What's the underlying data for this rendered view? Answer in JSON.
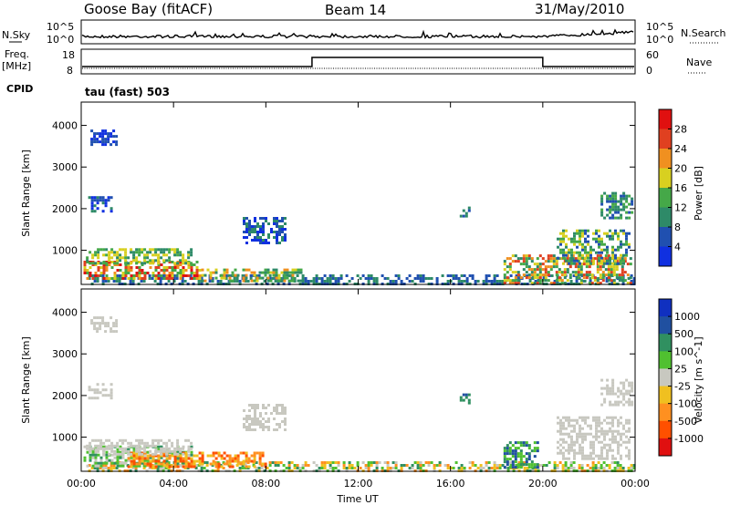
{
  "header": {
    "station": "Goose Bay (fitACF)",
    "beam": "Beam 14",
    "date": "31/May/2010"
  },
  "strips": {
    "nsky_label": "N.Sky",
    "nsky_ticks": [
      "10^5",
      "10^0"
    ],
    "nsearch_label": "N.Search",
    "nsearch_ticks": [
      "10^5",
      "10^0"
    ],
    "freq_label": "Freq.",
    "freq_unit": "[MHz]",
    "freq_ticks": [
      "18",
      "8"
    ],
    "nave_label": "Nave",
    "nave_ticks": [
      "60",
      "0"
    ],
    "cpid_label": "CPID",
    "cpid_value": "tau (fast) 503"
  },
  "chart_data": [
    {
      "type": "heatmap",
      "name": "power",
      "ylabel": "Slant Range [km]",
      "yticks": [
        "4000",
        "3000",
        "2000",
        "1000"
      ],
      "ylim": [
        180,
        4560
      ],
      "xlim_hours": [
        0,
        24
      ],
      "colorbar_label": "Power [dB]",
      "colorbar_ticks": [
        "28",
        "24",
        "20",
        "16",
        "12",
        "8",
        "4"
      ],
      "colors": [
        "#1030e0",
        "#2050b0",
        "#2e8a68",
        "#45a848",
        "#d8d020",
        "#f09020",
        "#e04020",
        "#e01010"
      ],
      "regions": [
        {
          "t0": 0.3,
          "t1": 24,
          "r0": 200,
          "r1": 420,
          "lvl": [
            1,
            2
          ]
        },
        {
          "t0": 0.1,
          "t1": 5.2,
          "r0": 300,
          "r1": 750,
          "lvl": [
            3,
            7
          ]
        },
        {
          "t0": 5.2,
          "t1": 9.5,
          "r0": 250,
          "r1": 560,
          "lvl": [
            2,
            5
          ]
        },
        {
          "t0": 0.2,
          "t1": 4.8,
          "r0": 700,
          "r1": 1050,
          "lvl": [
            2,
            4
          ]
        },
        {
          "t0": 0.3,
          "t1": 1.3,
          "r0": 1950,
          "r1": 2300,
          "lvl": [
            0,
            2
          ]
        },
        {
          "t0": 0.4,
          "t1": 1.5,
          "r0": 3550,
          "r1": 3900,
          "lvl": [
            0,
            1
          ]
        },
        {
          "t0": 7.0,
          "t1": 8.8,
          "r0": 1200,
          "r1": 1800,
          "lvl": [
            0,
            2
          ]
        },
        {
          "t0": 16.4,
          "t1": 16.8,
          "r0": 1800,
          "r1": 2050,
          "lvl": [
            1,
            2
          ]
        },
        {
          "t0": 18.3,
          "t1": 23.8,
          "r0": 200,
          "r1": 900,
          "lvl": [
            2,
            6
          ]
        },
        {
          "t0": 20.6,
          "t1": 23.8,
          "r0": 700,
          "r1": 1500,
          "lvl": [
            1,
            4
          ]
        },
        {
          "t0": 22.5,
          "t1": 23.9,
          "r0": 1800,
          "r1": 2400,
          "lvl": [
            1,
            3
          ]
        }
      ]
    },
    {
      "type": "heatmap",
      "name": "velocity",
      "ylabel": "Slant Range [km]",
      "yticks": [
        "4000",
        "3000",
        "2000",
        "1000"
      ],
      "ylim": [
        180,
        4560
      ],
      "xlim_hours": [
        0,
        24
      ],
      "xlabel": "Time UT",
      "xticks": [
        "00:00",
        "04:00",
        "08:00",
        "12:00",
        "16:00",
        "20:00",
        "00:00"
      ],
      "colorbar_label": "Velocity [m s^-1]",
      "colorbar_ticks": [
        "1000",
        "500",
        "100",
        "25",
        "-25",
        "-100",
        "-500",
        "-1000"
      ],
      "colors": [
        "#e01010",
        "#ff5000",
        "#ff9020",
        "#f0c020",
        "#c8c8c0",
        "#50c030",
        "#309060",
        "#2050a0",
        "#1030c0"
      ],
      "regions": [
        {
          "t0": 0.3,
          "t1": 24,
          "r0": 200,
          "r1": 420,
          "lvl": [
            2,
            6
          ]
        },
        {
          "t0": 0.1,
          "t1": 4.8,
          "r0": 300,
          "r1": 800,
          "lvl": [
            4,
            6
          ]
        },
        {
          "t0": 2.0,
          "t1": 8.0,
          "r0": 300,
          "r1": 650,
          "lvl": [
            1,
            3
          ]
        },
        {
          "t0": 0.2,
          "t1": 4.8,
          "r0": 600,
          "r1": 950,
          "lvl": [
            4,
            4
          ]
        },
        {
          "t0": 0.3,
          "t1": 1.3,
          "r0": 1950,
          "r1": 2300,
          "lvl": [
            4,
            4
          ]
        },
        {
          "t0": 0.4,
          "t1": 1.5,
          "r0": 3550,
          "r1": 3900,
          "lvl": [
            4,
            4
          ]
        },
        {
          "t0": 7.0,
          "t1": 8.8,
          "r0": 1200,
          "r1": 1800,
          "lvl": [
            4,
            4
          ]
        },
        {
          "t0": 16.4,
          "t1": 16.8,
          "r0": 1800,
          "r1": 2050,
          "lvl": [
            6,
            7
          ]
        },
        {
          "t0": 18.3,
          "t1": 19.8,
          "r0": 300,
          "r1": 900,
          "lvl": [
            5,
            7
          ]
        },
        {
          "t0": 20.6,
          "t1": 23.8,
          "r0": 500,
          "r1": 1500,
          "lvl": [
            4,
            4
          ]
        },
        {
          "t0": 22.5,
          "t1": 23.9,
          "r0": 1800,
          "r1": 2400,
          "lvl": [
            4,
            4
          ]
        }
      ]
    }
  ]
}
